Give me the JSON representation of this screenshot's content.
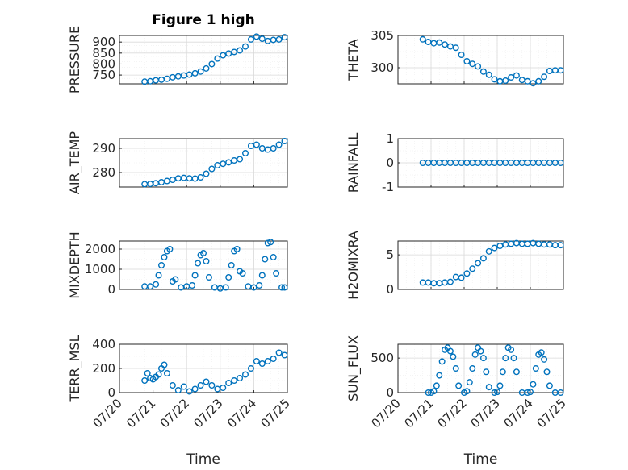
{
  "figure": {
    "title": "Figure 1 high",
    "marker_color": "#0072bd",
    "x_axis": {
      "label": "Time",
      "range": [
        "07/20",
        "07/25"
      ],
      "tick_labels": [
        "07/20",
        "07/21",
        "07/22",
        "07/23",
        "07/24",
        "07/25"
      ]
    }
  },
  "chart_data": [
    {
      "type": "scatter",
      "ylabel": "PRESSURE",
      "title": "Figure 1 high",
      "ylim": [
        710,
        930
      ],
      "yticks": [
        750,
        800,
        850,
        900
      ],
      "ytick_labels": [
        "750",
        "800",
        "850",
        "900"
      ],
      "grid": true,
      "series": [
        {
          "x": [
            "07/20 18:00",
            "07/20 22:00",
            "07/21 02:00",
            "07/21 06:00",
            "07/21 10:00",
            "07/21 14:00",
            "07/21 18:00",
            "07/21 22:00",
            "07/22 02:00",
            "07/22 06:00",
            "07/22 10:00",
            "07/22 14:00",
            "07/22 18:00",
            "07/22 22:00",
            "07/23 02:00",
            "07/23 06:00",
            "07/23 10:00",
            "07/23 14:00",
            "07/23 18:00",
            "07/23 22:00",
            "07/24 02:00",
            "07/24 06:00",
            "07/24 10:00",
            "07/24 14:00",
            "07/24 18:00",
            "07/24 22:00"
          ],
          "y": [
            720,
            722,
            726,
            729,
            733,
            740,
            744,
            748,
            752,
            758,
            766,
            780,
            800,
            825,
            840,
            848,
            855,
            862,
            880,
            912,
            925,
            915,
            905,
            910,
            912,
            922
          ]
        }
      ]
    },
    {
      "type": "scatter",
      "ylabel": "THETA",
      "ylim": [
        297.5,
        305
      ],
      "yticks": [
        300,
        305
      ],
      "ytick_labels": [
        "300",
        "305"
      ],
      "grid": true,
      "series": [
        {
          "x": [
            "07/20 18:00",
            "07/20 22:00",
            "07/21 02:00",
            "07/21 06:00",
            "07/21 10:00",
            "07/21 14:00",
            "07/21 18:00",
            "07/21 22:00",
            "07/22 02:00",
            "07/22 06:00",
            "07/22 10:00",
            "07/22 14:00",
            "07/22 18:00",
            "07/22 22:00",
            "07/23 02:00",
            "07/23 06:00",
            "07/23 10:00",
            "07/23 14:00",
            "07/23 18:00",
            "07/23 22:00",
            "07/24 02:00",
            "07/24 06:00",
            "07/24 10:00",
            "07/24 14:00",
            "07/24 18:00",
            "07/24 22:00"
          ],
          "y": [
            304.4,
            304.0,
            303.8,
            303.9,
            303.6,
            303.3,
            303.1,
            302.0,
            301.0,
            300.6,
            300.2,
            299.4,
            298.9,
            298.2,
            297.9,
            298.0,
            298.5,
            298.8,
            298.1,
            297.9,
            297.6,
            297.9,
            298.6,
            299.5,
            299.6,
            299.6
          ]
        }
      ]
    },
    {
      "type": "scatter",
      "ylabel": "AIR_TEMP",
      "ylim": [
        274,
        294
      ],
      "yticks": [
        280,
        290
      ],
      "ytick_labels": [
        "280",
        "290"
      ],
      "grid": true,
      "series": [
        {
          "x": [
            "07/20 18:00",
            "07/20 22:00",
            "07/21 02:00",
            "07/21 06:00",
            "07/21 10:00",
            "07/21 14:00",
            "07/21 18:00",
            "07/21 22:00",
            "07/22 02:00",
            "07/22 06:00",
            "07/22 10:00",
            "07/22 14:00",
            "07/22 18:00",
            "07/22 22:00",
            "07/23 02:00",
            "07/23 06:00",
            "07/23 10:00",
            "07/23 14:00",
            "07/23 18:00",
            "07/23 22:00",
            "07/24 02:00",
            "07/24 06:00",
            "07/24 10:00",
            "07/24 14:00",
            "07/24 18:00",
            "07/24 22:00"
          ],
          "y": [
            275.2,
            275.3,
            275.6,
            276.0,
            276.5,
            277.0,
            277.6,
            277.8,
            277.6,
            277.5,
            278.0,
            279.5,
            281.5,
            283.0,
            283.6,
            284.2,
            285.0,
            285.5,
            288.0,
            291.0,
            291.5,
            290.0,
            289.5,
            290.0,
            291.5,
            293.0
          ]
        }
      ]
    },
    {
      "type": "scatter",
      "ylabel": "RAINFALL",
      "ylim": [
        -1,
        1
      ],
      "yticks": [
        -1,
        0,
        1
      ],
      "ytick_labels": [
        "-1",
        "0",
        "1"
      ],
      "grid": true,
      "series": [
        {
          "x": [
            "07/20 18:00",
            "07/20 22:00",
            "07/21 02:00",
            "07/21 06:00",
            "07/21 10:00",
            "07/21 14:00",
            "07/21 18:00",
            "07/21 22:00",
            "07/22 02:00",
            "07/22 06:00",
            "07/22 10:00",
            "07/22 14:00",
            "07/22 18:00",
            "07/22 22:00",
            "07/23 02:00",
            "07/23 06:00",
            "07/23 10:00",
            "07/23 14:00",
            "07/23 18:00",
            "07/23 22:00",
            "07/24 02:00",
            "07/24 06:00",
            "07/24 10:00",
            "07/24 14:00",
            "07/24 18:00",
            "07/24 22:00"
          ],
          "y": [
            0,
            0,
            0,
            0,
            0,
            0,
            0,
            0,
            0,
            0,
            0,
            0,
            0,
            0,
            0,
            0,
            0,
            0,
            0,
            0,
            0,
            0,
            0,
            0,
            0,
            0
          ]
        }
      ]
    },
    {
      "type": "scatter",
      "ylabel": "MIXDEPTH",
      "ylim": [
        0,
        2400
      ],
      "yticks": [
        0,
        1000,
        2000
      ],
      "ytick_labels": [
        "0",
        "1000",
        "2000"
      ],
      "grid": true,
      "series": [
        {
          "x": [
            "07/20 18:00",
            "07/20 22:00",
            "07/21 02:00",
            "07/21 04:00",
            "07/21 06:00",
            "07/21 08:00",
            "07/21 10:00",
            "07/21 12:00",
            "07/21 14:00",
            "07/21 16:00",
            "07/21 20:00",
            "07/22 00:00",
            "07/22 04:00",
            "07/22 06:00",
            "07/22 08:00",
            "07/22 10:00",
            "07/22 12:00",
            "07/22 14:00",
            "07/22 16:00",
            "07/22 20:00",
            "07/23 00:00",
            "07/23 04:00",
            "07/23 06:00",
            "07/23 08:00",
            "07/23 10:00",
            "07/23 12:00",
            "07/23 14:00",
            "07/23 16:00",
            "07/23 20:00",
            "07/24 00:00",
            "07/24 04:00",
            "07/24 06:00",
            "07/24 08:00",
            "07/24 10:00",
            "07/24 12:00",
            "07/24 14:00",
            "07/24 16:00",
            "07/24 20:00",
            "07/24 22:00"
          ],
          "y": [
            150,
            150,
            250,
            700,
            1200,
            1600,
            1900,
            2000,
            400,
            500,
            100,
            150,
            200,
            700,
            1300,
            1700,
            1800,
            1400,
            600,
            100,
            50,
            100,
            600,
            1200,
            1900,
            2000,
            900,
            800,
            150,
            100,
            200,
            700,
            1500,
            2300,
            2350,
            1600,
            800,
            100,
            100
          ]
        }
      ]
    },
    {
      "type": "scatter",
      "ylabel": "H2OMIXRA",
      "ylim": [
        0,
        7
      ],
      "yticks": [
        0,
        5
      ],
      "ytick_labels": [
        "0",
        "5"
      ],
      "grid": true,
      "series": [
        {
          "x": [
            "07/20 18:00",
            "07/20 22:00",
            "07/21 02:00",
            "07/21 06:00",
            "07/21 10:00",
            "07/21 14:00",
            "07/21 18:00",
            "07/21 22:00",
            "07/22 02:00",
            "07/22 06:00",
            "07/22 10:00",
            "07/22 14:00",
            "07/22 18:00",
            "07/22 22:00",
            "07/23 02:00",
            "07/23 06:00",
            "07/23 10:00",
            "07/23 14:00",
            "07/23 18:00",
            "07/23 22:00",
            "07/24 02:00",
            "07/24 06:00",
            "07/24 10:00",
            "07/24 14:00",
            "07/24 18:00",
            "07/24 22:00"
          ],
          "y": [
            1.0,
            1.0,
            0.9,
            0.9,
            1.0,
            1.1,
            1.8,
            1.7,
            2.3,
            3.0,
            3.8,
            4.5,
            5.5,
            6.0,
            6.3,
            6.5,
            6.6,
            6.7,
            6.6,
            6.6,
            6.7,
            6.6,
            6.5,
            6.5,
            6.4,
            6.4
          ]
        }
      ]
    },
    {
      "type": "scatter",
      "ylabel": "TERR_MSL",
      "ylim": [
        0,
        400
      ],
      "yticks": [
        0,
        200,
        400
      ],
      "ytick_labels": [
        "0",
        "200",
        "400"
      ],
      "grid": true,
      "series": [
        {
          "x": [
            "07/20 18:00",
            "07/20 20:00",
            "07/20 22:00",
            "07/21 00:00",
            "07/21 02:00",
            "07/21 04:00",
            "07/21 06:00",
            "07/21 08:00",
            "07/21 10:00",
            "07/21 14:00",
            "07/21 18:00",
            "07/21 22:00",
            "07/22 02:00",
            "07/22 06:00",
            "07/22 10:00",
            "07/22 14:00",
            "07/22 18:00",
            "07/22 22:00",
            "07/23 02:00",
            "07/23 06:00",
            "07/23 10:00",
            "07/23 14:00",
            "07/23 18:00",
            "07/23 22:00",
            "07/24 02:00",
            "07/24 06:00",
            "07/24 10:00",
            "07/24 14:00",
            "07/24 18:00",
            "07/24 22:00"
          ],
          "y": [
            100,
            160,
            120,
            110,
            130,
            150,
            200,
            230,
            160,
            60,
            20,
            50,
            10,
            30,
            60,
            90,
            60,
            30,
            40,
            80,
            100,
            120,
            150,
            200,
            260,
            240,
            260,
            280,
            330,
            310
          ]
        }
      ]
    },
    {
      "type": "scatter",
      "ylabel": "SUN_FLUX",
      "ylim": [
        0,
        700
      ],
      "yticks": [
        0,
        500
      ],
      "ytick_labels": [
        "0",
        "500"
      ],
      "grid": true,
      "series": [
        {
          "x": [
            "07/20 22:00",
            "07/21 00:00",
            "07/21 02:00",
            "07/21 04:00",
            "07/21 06:00",
            "07/21 08:00",
            "07/21 10:00",
            "07/21 12:00",
            "07/21 14:00",
            "07/21 16:00",
            "07/21 18:00",
            "07/21 20:00",
            "07/22 00:00",
            "07/22 02:00",
            "07/22 04:00",
            "07/22 06:00",
            "07/22 08:00",
            "07/22 10:00",
            "07/22 12:00",
            "07/22 14:00",
            "07/22 16:00",
            "07/22 18:00",
            "07/22 22:00",
            "07/23 00:00",
            "07/23 02:00",
            "07/23 04:00",
            "07/23 06:00",
            "07/23 08:00",
            "07/23 10:00",
            "07/23 12:00",
            "07/23 14:00",
            "07/23 18:00",
            "07/23 22:00",
            "07/24 00:00",
            "07/24 02:00",
            "07/24 04:00",
            "07/24 06:00",
            "07/24 08:00",
            "07/24 10:00",
            "07/24 12:00",
            "07/24 14:00",
            "07/24 18:00",
            "07/24 22:00"
          ],
          "y": [
            0,
            0,
            20,
            100,
            250,
            450,
            620,
            650,
            600,
            520,
            350,
            100,
            0,
            20,
            150,
            350,
            550,
            650,
            600,
            500,
            300,
            80,
            0,
            10,
            100,
            300,
            500,
            650,
            620,
            500,
            300,
            0,
            0,
            10,
            120,
            350,
            550,
            580,
            480,
            300,
            100,
            0,
            0
          ]
        }
      ]
    }
  ]
}
